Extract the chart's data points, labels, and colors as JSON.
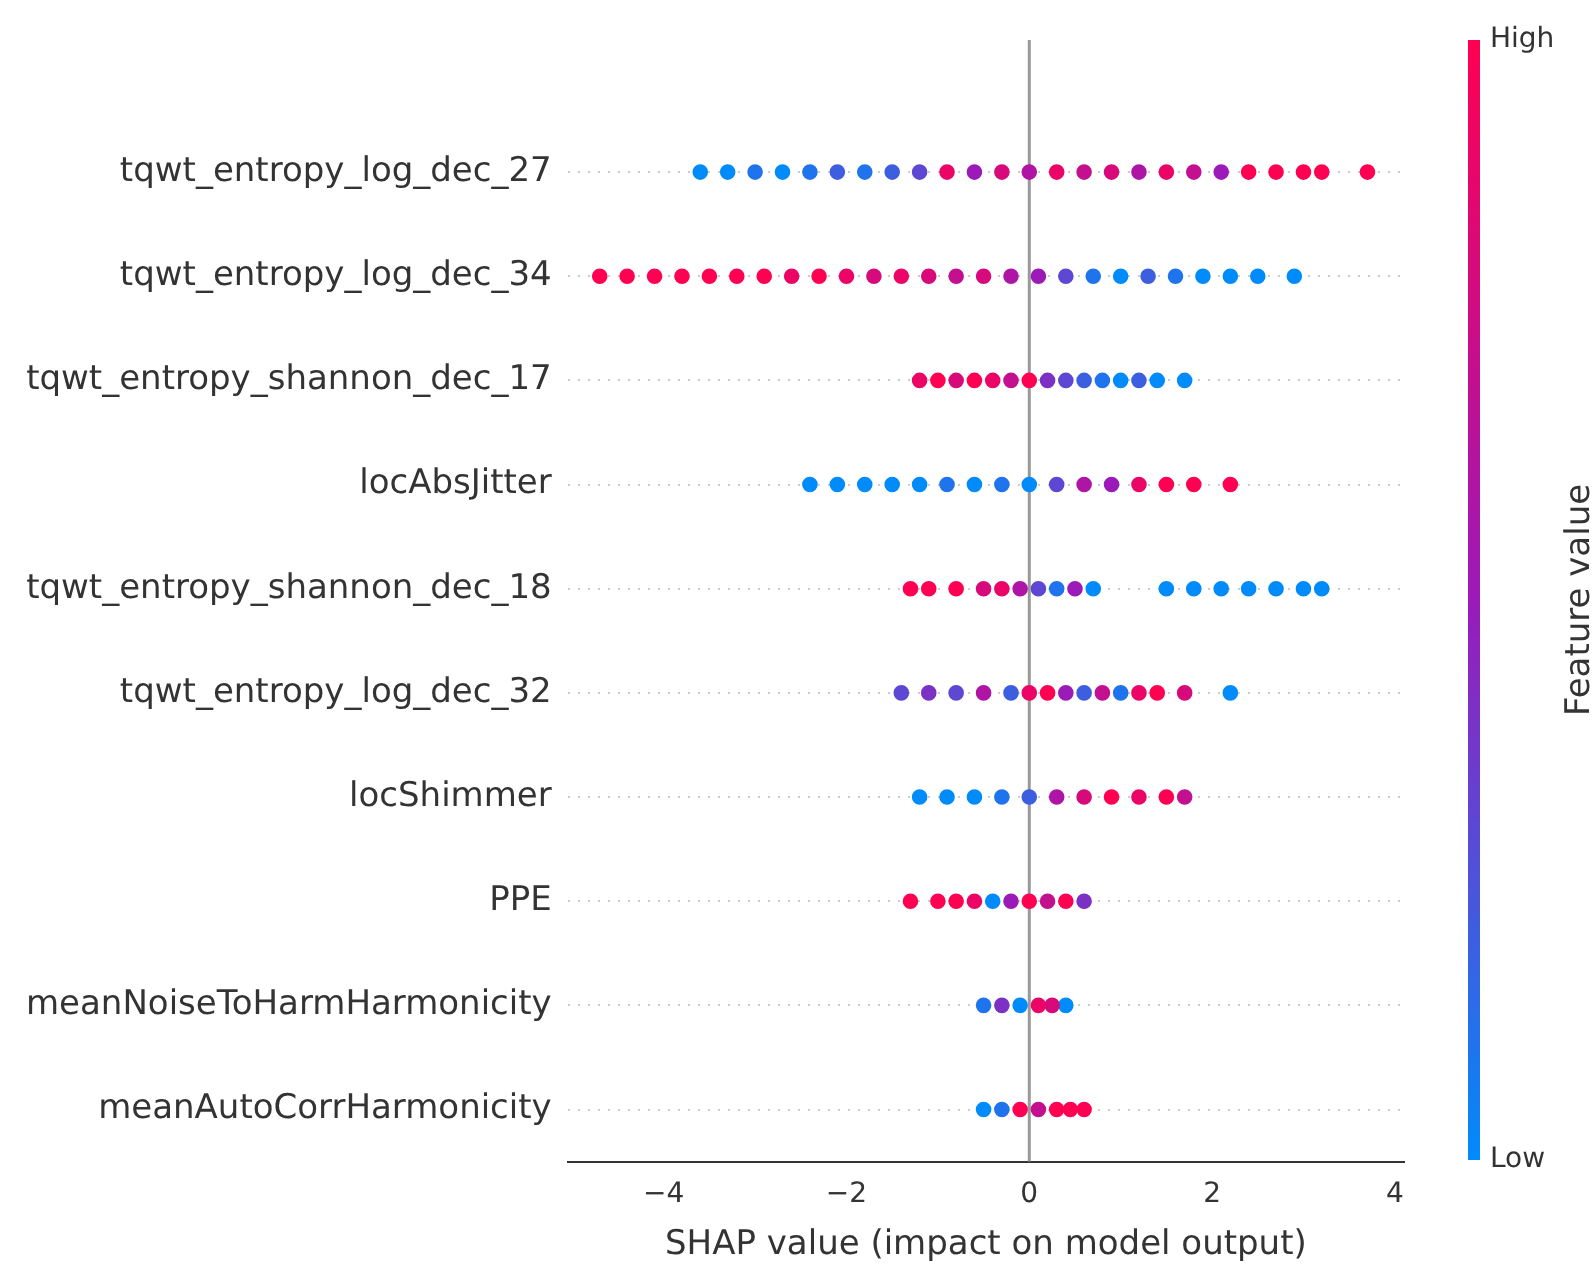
{
  "chart_data": {
    "type": "scatter",
    "orientation": "horizontal",
    "xlabel": "SHAP value (impact on model output)",
    "clabel": "Feature value",
    "categories": [
      "tqwt_entropy_log_dec_27",
      "tqwt_entropy_log_dec_34",
      "tqwt_entropy_shannon_dec_17",
      "locAbsJitter",
      "tqwt_entropy_shannon_dec_18",
      "tqwt_entropy_log_dec_32",
      "locShimmer",
      "PPE",
      "meanNoiseToHarmHarmonicity",
      "meanAutoCorrHarmonicity"
    ],
    "xlim": [
      -5.05,
      4.1
    ],
    "xticks": [
      {
        "value": -4,
        "label": "−4"
      },
      {
        "value": -2,
        "label": "−2"
      },
      0,
      2,
      4
    ],
    "clim": [
      0,
      1
    ],
    "cticks": [
      {
        "value": 0,
        "label": "Low"
      },
      {
        "value": 1,
        "label": "High"
      }
    ],
    "grid": "y",
    "marker": "circle",
    "legend": false,
    "ref_lines": [
      {
        "axis": "x",
        "value": 0,
        "color": "#999999"
      }
    ],
    "series": [
      {
        "values": [
          -3.6,
          -4.7,
          -1.2,
          -2.4,
          -1.3,
          -1.4,
          -1.2,
          -1.3,
          -0.5,
          -0.5
        ],
        "cvalues": [
          0,
          1,
          0.9,
          0,
          1,
          0.3,
          0,
          1,
          0.1,
          0
        ],
        "colors": [
          "#008bfb",
          "#ff0052",
          "#eb0566",
          "#008bfb",
          "#ff0052",
          "#5d47d3",
          "#008bfb",
          "#ff0052",
          "#1f74ee",
          "#008bfb"
        ]
      },
      {
        "values": [
          -3.3,
          -4.4,
          -1.0,
          -2.1,
          -1.1,
          -1.1,
          -0.9,
          -1.0,
          -0.3,
          -0.3
        ],
        "cvalues": [
          0,
          1,
          1,
          0,
          1,
          0.4,
          0,
          1,
          0.4,
          0.1
        ],
        "colors": [
          "#008bfb",
          "#ff0052",
          "#ff0052",
          "#008bfb",
          "#ff0052",
          "#7c31c5",
          "#008bfb",
          "#ff0052",
          "#7c31c5",
          "#1f74ee"
        ]
      },
      {
        "values": [
          -3.0,
          -4.1,
          -0.8,
          -1.8,
          -0.8,
          -0.8,
          -0.6,
          -0.8,
          -0.1,
          -0.1
        ],
        "cvalues": [
          0.1,
          1,
          0.8,
          0,
          1,
          0.3,
          0,
          1,
          0,
          1
        ],
        "colors": [
          "#1f74ee",
          "#ff0052",
          "#d70a7b",
          "#008bfb",
          "#ff0052",
          "#5d47d3",
          "#008bfb",
          "#ff0052",
          "#008bfb",
          "#ff0052"
        ]
      },
      {
        "values": [
          -2.7,
          -3.8,
          -0.6,
          -1.5,
          -0.5,
          -0.5,
          -0.3,
          -0.6,
          0.1,
          0.1
        ],
        "cvalues": [
          0,
          1,
          1,
          0,
          0.8,
          0.6,
          0.1,
          0.9,
          0.9,
          0.7
        ],
        "colors": [
          "#008bfb",
          "#ff0052",
          "#ff0052",
          "#008bfb",
          "#d70a7b",
          "#af15a4",
          "#1f74ee",
          "#eb0566",
          "#eb0566",
          "#c3108f"
        ]
      },
      {
        "values": [
          -2.4,
          -3.5,
          -0.4,
          -1.2,
          -0.3,
          -0.2,
          0,
          -0.4,
          0.25,
          0.3
        ],
        "cvalues": [
          0.1,
          1,
          0.9,
          0,
          0.9,
          0.2,
          0.2,
          0,
          0.8,
          1
        ],
        "colors": [
          "#1f74ee",
          "#ff0052",
          "#eb0566",
          "#008bfb",
          "#eb0566",
          "#3e5ee0",
          "#3e5ee0",
          "#008bfb",
          "#d70a7b",
          "#ff0052"
        ]
      },
      {
        "values": [
          -2.1,
          -3.2,
          -0.2,
          -0.9,
          -0.1,
          0,
          0.3,
          -0.2,
          0.4,
          0.45
        ],
        "cvalues": [
          0.2,
          1,
          0.7,
          0.1,
          0.6,
          0.9,
          0.6,
          0.5,
          0,
          1
        ],
        "colors": [
          "#3e5ee0",
          "#ff0052",
          "#c3108f",
          "#1f74ee",
          "#af15a4",
          "#eb0566",
          "#af15a4",
          "#9b1ab8",
          "#008bfb",
          "#ff0052"
        ]
      },
      {
        "values": [
          -1.8,
          -2.9,
          0,
          -0.6,
          0.1,
          0.2,
          0.6,
          0,
          null,
          0.6
        ],
        "cvalues": [
          0.1,
          1,
          1,
          0,
          0.3,
          1,
          0.8,
          1,
          null,
          1
        ],
        "colors": [
          "#1f74ee",
          "#ff0052",
          "#ff0052",
          "#008bfb",
          "#5d47d3",
          "#ff0052",
          "#d70a7b",
          "#ff0052",
          null,
          "#ff0052"
        ]
      },
      {
        "values": [
          -1.5,
          -2.6,
          0.2,
          -0.3,
          0.3,
          0.4,
          0.9,
          0.2,
          null,
          null
        ],
        "cvalues": [
          0.2,
          0.9,
          0.4,
          0.1,
          0.1,
          0.5,
          1,
          0.7,
          null,
          null
        ],
        "colors": [
          "#3e5ee0",
          "#eb0566",
          "#7c31c5",
          "#1f74ee",
          "#1f74ee",
          "#9b1ab8",
          "#ff0052",
          "#c3108f",
          null,
          null
        ]
      },
      {
        "values": [
          -1.2,
          -2.3,
          0.4,
          0,
          0.5,
          0.6,
          1.2,
          0.4,
          null,
          null
        ],
        "cvalues": [
          0.3,
          1,
          0.3,
          0,
          0.5,
          0.2,
          0.9,
          1,
          null,
          null
        ],
        "colors": [
          "#5d47d3",
          "#ff0052",
          "#5d47d3",
          "#008bfb",
          "#9b1ab8",
          "#3e5ee0",
          "#eb0566",
          "#ff0052",
          null,
          null
        ]
      },
      {
        "values": [
          -0.9,
          -2.0,
          0.6,
          0.3,
          0.7,
          0.8,
          1.5,
          0.6,
          null,
          null
        ],
        "cvalues": [
          0.9,
          0.9,
          0.2,
          0.3,
          0,
          0.7,
          1,
          0.4,
          null,
          null
        ],
        "colors": [
          "#eb0566",
          "#eb0566",
          "#3e5ee0",
          "#5d47d3",
          "#008bfb",
          "#c3108f",
          "#ff0052",
          "#7c31c5",
          null,
          null
        ]
      },
      {
        "values": [
          -0.6,
          -1.7,
          0.8,
          0.6,
          1.5,
          1.0,
          1.7,
          null,
          null,
          null
        ],
        "cvalues": [
          0.5,
          0.8,
          0.1,
          0.6,
          0,
          0.1,
          0.7,
          null,
          null,
          null
        ],
        "colors": [
          "#9b1ab8",
          "#d70a7b",
          "#1f74ee",
          "#af15a4",
          "#008bfb",
          "#1f74ee",
          "#c3108f",
          null,
          null,
          null
        ]
      },
      {
        "values": [
          -0.3,
          -1.4,
          1.0,
          0.9,
          1.8,
          1.2,
          null,
          null,
          null,
          null
        ],
        "cvalues": [
          0.8,
          0.9,
          0,
          0.5,
          0,
          0.9,
          null,
          null,
          null,
          null
        ],
        "colors": [
          "#d70a7b",
          "#eb0566",
          "#008bfb",
          "#9b1ab8",
          "#008bfb",
          "#eb0566",
          null,
          null,
          null,
          null
        ]
      },
      {
        "values": [
          0,
          -1.1,
          1.2,
          1.2,
          2.1,
          1.4,
          null,
          null,
          null,
          null
        ],
        "cvalues": [
          0.6,
          0.8,
          0.2,
          0.9,
          0,
          1,
          null,
          null,
          null,
          null
        ],
        "colors": [
          "#af15a4",
          "#d70a7b",
          "#3e5ee0",
          "#eb0566",
          "#008bfb",
          "#ff0052",
          null,
          null,
          null,
          null
        ]
      },
      {
        "values": [
          0.3,
          -0.8,
          1.4,
          1.5,
          2.4,
          1.7,
          null,
          null,
          null,
          null
        ],
        "cvalues": [
          0.9,
          0.7,
          0,
          1,
          0,
          0.8,
          null,
          null,
          null,
          null
        ],
        "colors": [
          "#eb0566",
          "#c3108f",
          "#008bfb",
          "#ff0052",
          "#008bfb",
          "#d70a7b",
          null,
          null,
          null,
          null
        ]
      },
      {
        "values": [
          0.6,
          -0.5,
          1.7,
          1.8,
          2.7,
          2.2,
          null,
          null,
          null,
          null
        ],
        "cvalues": [
          0.7,
          0.8,
          0,
          1,
          0,
          0,
          null,
          null,
          null,
          null
        ],
        "colors": [
          "#c3108f",
          "#d70a7b",
          "#008bfb",
          "#ff0052",
          "#008bfb",
          "#008bfb",
          null,
          null,
          null,
          null
        ]
      },
      {
        "values": [
          0.9,
          -0.2,
          null,
          2.2,
          3.0,
          null,
          null,
          null,
          null,
          null
        ],
        "cvalues": [
          0.8,
          0.6,
          null,
          1,
          0,
          null,
          null,
          null,
          null,
          null
        ],
        "colors": [
          "#d70a7b",
          "#af15a4",
          null,
          "#ff0052",
          "#008bfb",
          null,
          null,
          null,
          null,
          null
        ]
      },
      {
        "values": [
          1.2,
          0.1,
          null,
          null,
          3.2,
          null,
          null,
          null,
          null,
          null
        ],
        "cvalues": [
          0.6,
          0.5,
          null,
          null,
          0,
          null,
          null,
          null,
          null,
          null
        ],
        "colors": [
          "#af15a4",
          "#9b1ab8",
          null,
          null,
          "#008bfb",
          null,
          null,
          null,
          null,
          null
        ]
      },
      {
        "values": [
          1.5,
          0.4,
          null,
          null,
          null,
          null,
          null,
          null,
          null,
          null
        ],
        "cvalues": [
          0.9,
          0.3,
          null,
          null,
          null,
          null,
          null,
          null,
          null,
          null
        ],
        "colors": [
          "#eb0566",
          "#5d47d3",
          null,
          null,
          null,
          null,
          null,
          null,
          null,
          null
        ]
      },
      {
        "values": [
          1.8,
          0.7,
          null,
          null,
          null,
          null,
          null,
          null,
          null,
          null
        ],
        "cvalues": [
          0.7,
          0.1,
          null,
          null,
          null,
          null,
          null,
          null,
          null,
          null
        ],
        "colors": [
          "#c3108f",
          "#1f74ee",
          null,
          null,
          null,
          null,
          null,
          null,
          null,
          null
        ]
      },
      {
        "values": [
          2.1,
          1.0,
          null,
          null,
          null,
          null,
          null,
          null,
          null,
          null
        ],
        "cvalues": [
          0.5,
          0,
          null,
          null,
          null,
          null,
          null,
          null,
          null,
          null
        ],
        "colors": [
          "#9b1ab8",
          "#008bfb",
          null,
          null,
          null,
          null,
          null,
          null,
          null,
          null
        ]
      },
      {
        "values": [
          2.4,
          1.3,
          null,
          null,
          null,
          null,
          null,
          null,
          null,
          null
        ],
        "cvalues": [
          1,
          0.2,
          null,
          null,
          null,
          null,
          null,
          null,
          null,
          null
        ],
        "colors": [
          "#ff0052",
          "#3e5ee0",
          null,
          null,
          null,
          null,
          null,
          null,
          null,
          null
        ]
      },
      {
        "values": [
          2.7,
          1.6,
          null,
          null,
          null,
          null,
          null,
          null,
          null,
          null
        ],
        "cvalues": [
          1,
          0.1,
          null,
          null,
          null,
          null,
          null,
          null,
          null,
          null
        ],
        "colors": [
          "#ff0052",
          "#1f74ee",
          null,
          null,
          null,
          null,
          null,
          null,
          null,
          null
        ]
      },
      {
        "values": [
          3.0,
          1.9,
          null,
          null,
          null,
          null,
          null,
          null,
          null,
          null
        ],
        "cvalues": [
          1,
          0,
          null,
          null,
          null,
          null,
          null,
          null,
          null,
          null
        ],
        "colors": [
          "#ff0052",
          "#008bfb",
          null,
          null,
          null,
          null,
          null,
          null,
          null,
          null
        ]
      },
      {
        "values": [
          3.2,
          2.2,
          null,
          null,
          null,
          null,
          null,
          null,
          null,
          null
        ],
        "cvalues": [
          1,
          0,
          null,
          null,
          null,
          null,
          null,
          null,
          null,
          null
        ],
        "colors": [
          "#ff0052",
          "#008bfb",
          null,
          null,
          null,
          null,
          null,
          null,
          null,
          null
        ]
      },
      {
        "values": [
          3.7,
          2.5,
          null,
          null,
          null,
          null,
          null,
          null,
          null,
          null
        ],
        "cvalues": [
          1,
          0,
          null,
          null,
          null,
          null,
          null,
          null,
          null,
          null
        ],
        "colors": [
          "#ff0052",
          "#008bfb",
          null,
          null,
          null,
          null,
          null,
          null,
          null,
          null
        ]
      },
      {
        "values": [
          null,
          2.9,
          null,
          null,
          null,
          null,
          null,
          null,
          null,
          null
        ],
        "cvalues": [
          null,
          0,
          null,
          null,
          null,
          null,
          null,
          null,
          null,
          null
        ],
        "colors": [
          null,
          "#008bfb",
          null,
          null,
          null,
          null,
          null,
          null,
          null,
          null
        ]
      }
    ]
  }
}
